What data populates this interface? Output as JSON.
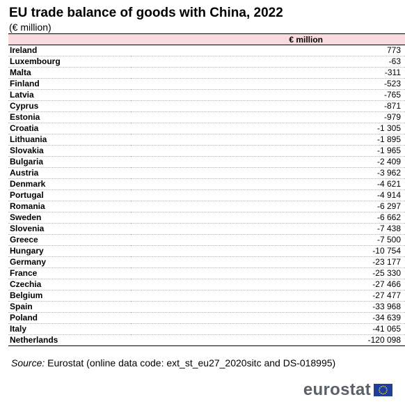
{
  "title": "EU trade balance of goods with China, 2022",
  "subtitle": "(€ million)",
  "table": {
    "column_header": "€ million",
    "rows": [
      {
        "country": "Ireland",
        "value": "773"
      },
      {
        "country": "Luxembourg",
        "value": "-63"
      },
      {
        "country": "Malta",
        "value": "-311"
      },
      {
        "country": "Finland",
        "value": "-523"
      },
      {
        "country": "Latvia",
        "value": "-765"
      },
      {
        "country": "Cyprus",
        "value": "-871"
      },
      {
        "country": "Estonia",
        "value": "-979"
      },
      {
        "country": "Croatia",
        "value": "-1 305"
      },
      {
        "country": "Lithuania",
        "value": "-1 895"
      },
      {
        "country": "Slovakia",
        "value": "-1 965"
      },
      {
        "country": "Bulgaria",
        "value": "-2 409"
      },
      {
        "country": "Austria",
        "value": "-3 962"
      },
      {
        "country": "Denmark",
        "value": "-4 621"
      },
      {
        "country": "Portugal",
        "value": "-4 914"
      },
      {
        "country": "Romania",
        "value": "-6 297"
      },
      {
        "country": "Sweden",
        "value": "-6 662"
      },
      {
        "country": "Slovenia",
        "value": "-7 438"
      },
      {
        "country": "Greece",
        "value": "-7 500"
      },
      {
        "country": "Hungary",
        "value": "-10 754"
      },
      {
        "country": "Germany",
        "value": "-23 177"
      },
      {
        "country": "France",
        "value": "-25 330"
      },
      {
        "country": "Czechia",
        "value": "-27 466"
      },
      {
        "country": "Belgium",
        "value": "-27 477"
      },
      {
        "country": "Spain",
        "value": "-33 968"
      },
      {
        "country": "Poland",
        "value": "-34 639"
      },
      {
        "country": "Italy",
        "value": "-41 065"
      },
      {
        "country": "Netherlands",
        "value": "-120 098"
      }
    ]
  },
  "source": {
    "label": "Source:",
    "text": "Eurostat (online data code: ext_st_eu27_2020sitc and DS-018995)"
  },
  "logo": {
    "text": "eurostat",
    "flag_blue": "#1f3f9a",
    "flag_star": "#ffd617",
    "icon": "eu-flag-icon"
  },
  "colors": {
    "header_background": "#fadadd",
    "logo_text": "#5a6068"
  }
}
